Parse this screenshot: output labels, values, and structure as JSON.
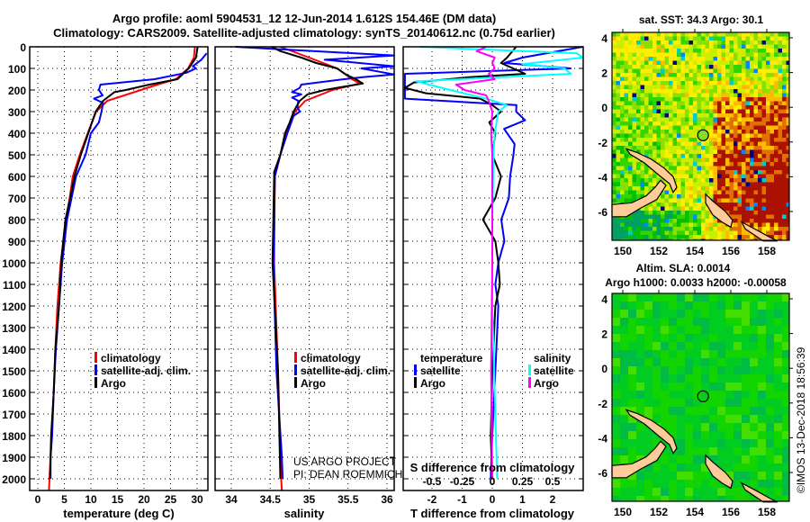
{
  "header": {
    "title_line1": "Argo profile: aoml 5904531_12 12-Jun-2014 1.612S 154.46E (DM data)",
    "title_line2": "Climatology: CARS2009. Satellite-adjusted climatology: synTS_20140612.nc (0.75d earlier)"
  },
  "colors": {
    "climatology": "#ff0000",
    "satellite": "#0000ff",
    "argo": "#000000",
    "sal_satellite": "#00ffff",
    "sal_argo": "#ff00ff",
    "land": "#ffcc99"
  },
  "depth_axis": {
    "ticks": [
      0,
      100,
      200,
      300,
      400,
      500,
      600,
      700,
      800,
      900,
      1000,
      1100,
      1200,
      1300,
      1400,
      1500,
      1600,
      1700,
      1800,
      1900,
      2000
    ],
    "range": [
      0,
      2055
    ]
  },
  "chart_data": [
    {
      "type": "line",
      "name": "temperature",
      "xlabel": "temperature (deg C)",
      "ylabel": "depth",
      "xlim": [
        -1.5,
        32.1
      ],
      "xticks": [
        0,
        5,
        10,
        15,
        20,
        25,
        30
      ],
      "grid": true,
      "legend_position": "middle-right",
      "legend": [
        "climatology",
        "satellite-adj. clim.",
        "Argo"
      ],
      "series": [
        {
          "name": "climatology",
          "color": "#ff0000",
          "depth": [
            0,
            50,
            100,
            150,
            175,
            200,
            250,
            300,
            400,
            500,
            600,
            700,
            800,
            900,
            1000,
            1100,
            1200,
            1400,
            1600,
            1800,
            2000,
            2055
          ],
          "values": [
            29.6,
            29.4,
            28.3,
            26,
            22.5,
            19.4,
            13.1,
            11,
            9.4,
            7.9,
            6.6,
            6.0,
            5.3,
            4.8,
            4.3,
            4.0,
            3.7,
            3.3,
            3.0,
            2.6,
            2.2,
            2.1
          ]
        },
        {
          "name": "satellite-adj. clim.",
          "color": "#0000ff",
          "depth": [
            30,
            60,
            90,
            100,
            120,
            150,
            175,
            200,
            225,
            240,
            260,
            300,
            350,
            400,
            500,
            600,
            800,
            1000,
            1200,
            1400,
            1600,
            1800,
            1900,
            2000
          ],
          "values": [
            31.8,
            30.8,
            29.2,
            29.8,
            28,
            22,
            11.8,
            11.5,
            12.2,
            10.6,
            12.3,
            12.0,
            11.5,
            10,
            9,
            7.2,
            5.5,
            4.6,
            4.0,
            3.4,
            3.0,
            2.7,
            2.4,
            2.4
          ]
        },
        {
          "name": "Argo",
          "color": "#000000",
          "depth": [
            0,
            50,
            100,
            150,
            175,
            200,
            210,
            250,
            300,
            400,
            500,
            600,
            700,
            800,
            900,
            1000,
            1100,
            1200,
            1400,
            1600,
            1800,
            2000
          ],
          "values": [
            30.1,
            29.8,
            28.4,
            26.3,
            21,
            16.6,
            14.4,
            12.3,
            10.9,
            9.5,
            8.1,
            6.9,
            6.1,
            5.2,
            4.8,
            4.4,
            4.2,
            4.0,
            3.3,
            3.0,
            2.5,
            2.3
          ]
        }
      ]
    },
    {
      "type": "line",
      "name": "salinity",
      "xlabel": "salinity",
      "ylabel": "depth",
      "xlim": [
        33.79,
        36.09
      ],
      "xticks": [
        34,
        34.5,
        35,
        35.5,
        36
      ],
      "xtick_labels": [
        "34",
        "34.5",
        "35",
        "35.5",
        "36"
      ],
      "grid": true,
      "legend_position": "middle-right",
      "legend": [
        "climatology",
        "satellite-adj. clim.",
        "Argo"
      ],
      "annotation": [
        "US ARGO PROJECT",
        "PI: DEAN ROEMMICH"
      ],
      "series": [
        {
          "name": "climatology",
          "color": "#ff0000",
          "depth": [
            0,
            50,
            100,
            150,
            170,
            200,
            250,
            300,
            400,
            500,
            600,
            1000,
            1500,
            2000,
            2055
          ],
          "values": [
            34.63,
            35.0,
            35.36,
            35.55,
            35.65,
            35.3,
            34.95,
            34.82,
            34.7,
            34.63,
            34.56,
            34.55,
            34.6,
            34.64,
            34.65
          ]
        },
        {
          "name": "satellite-adj. clim.",
          "color": "#0000ff",
          "depth": [
            0,
            40,
            60,
            90,
            100,
            128,
            140,
            150,
            175,
            190,
            210,
            220,
            235,
            250,
            280,
            300,
            320,
            400,
            500,
            600,
            1000,
            1500,
            1900,
            2000
          ],
          "values": [
            34.05,
            36.09,
            35.2,
            36.09,
            35.67,
            36.09,
            35.7,
            35.45,
            34.9,
            34.88,
            34.78,
            34.9,
            34.78,
            34.86,
            34.85,
            34.88,
            34.8,
            34.72,
            34.63,
            34.56,
            34.54,
            34.58,
            34.65,
            34.66
          ]
        },
        {
          "name": "Argo",
          "color": "#000000",
          "depth": [
            0,
            20,
            50,
            75,
            100,
            130,
            150,
            170,
            185,
            200,
            220,
            250,
            300,
            350,
            400,
            500,
            580,
            600,
            1000,
            1500,
            2000
          ],
          "values": [
            34.52,
            34.63,
            34.9,
            35.09,
            35.36,
            35.48,
            35.6,
            35.69,
            35.44,
            35.2,
            34.98,
            34.88,
            34.8,
            34.75,
            34.69,
            34.63,
            34.55,
            34.55,
            34.53,
            34.6,
            34.63
          ]
        }
      ]
    },
    {
      "type": "line",
      "name": "difference",
      "xlabel": "T difference from climatology",
      "x2label": "S difference from climatology",
      "xlim": [
        -2.96,
        3.0
      ],
      "xticks": [
        -2,
        -1,
        0,
        1,
        2
      ],
      "xtick_labels": [
        "-2",
        "-1",
        "0",
        "1",
        "2"
      ],
      "x2ticks": [
        -0.5,
        -0.25,
        0,
        0.25,
        0.5
      ],
      "x2tick_labels": [
        "-0.5",
        "-0.25",
        "0",
        "0.25",
        "0.5"
      ],
      "grid": true,
      "legend_left_title": "temperature",
      "legend_right_title": "salinity",
      "legend": [
        "satellite",
        "Argo",
        "satellite",
        "Argo"
      ],
      "series": [
        {
          "name": "T satellite",
          "color": "#0000ff",
          "axis": "T",
          "depth": [
            0,
            50,
            75,
            100,
            125,
            130,
            240,
            270,
            300,
            340,
            380,
            450,
            500,
            600,
            700,
            800,
            900,
            1000,
            1100,
            1200,
            1500,
            1800,
            2000
          ],
          "values": [
            3.0,
            1.0,
            0.4,
            2.6,
            -2.9,
            -2.9,
            -2.9,
            0.8,
            0.79,
            1.09,
            0.39,
            0.74,
            0.7,
            0.59,
            0.55,
            0.3,
            0.4,
            0.2,
            0.1,
            0.2,
            0.1,
            0.0,
            -0.05
          ]
        },
        {
          "name": "T Argo",
          "color": "#000000",
          "axis": "T",
          "depth": [
            0,
            50,
            75,
            100,
            125,
            140,
            165,
            190,
            215,
            240,
            270,
            300,
            350,
            400,
            500,
            600,
            700,
            800,
            900,
            1000,
            1100,
            1200,
            1500,
            1800,
            2000
          ],
          "values": [
            0.79,
            0.49,
            0.29,
            0.69,
            1.09,
            -0.71,
            -2.6,
            -2.9,
            -2.2,
            -0.4,
            0,
            0.29,
            -0.1,
            0.1,
            0,
            0.29,
            0.1,
            -0.31,
            0.1,
            0.2,
            0.25,
            0.1,
            0,
            -0.05,
            0
          ]
        },
        {
          "name": "S satellite",
          "color": "#00ffff",
          "axis": "S",
          "depth": [
            0,
            30,
            50,
            80,
            100,
            125,
            160,
            200,
            240,
            270,
            300,
            400,
            500,
            800,
            1200,
            1600,
            2000
          ],
          "values": [
            -0.6,
            0.7,
            0.75,
            0.25,
            0.6,
            0.65,
            -0.63,
            -0.35,
            -0.05,
            0.12,
            0.05,
            0.02,
            0.01,
            0,
            0,
            0.02,
            0.04
          ]
        },
        {
          "name": "S Argo",
          "color": "#ff00ff",
          "axis": "S",
          "depth": [
            0,
            20,
            50,
            75,
            100,
            125,
            150,
            175,
            200,
            225,
            250,
            300,
            400,
            500,
            1000,
            1500,
            2000
          ],
          "values": [
            -0.05,
            -0.13,
            0.02,
            0,
            0.02,
            -0.03,
            0.02,
            -0.3,
            -0.23,
            -0.05,
            -0.03,
            0,
            -0.01,
            0,
            0,
            -0.01,
            0
          ]
        }
      ]
    }
  ],
  "maps": {
    "sst": {
      "title": "sat. SST: 34.3 Argo: 30.1"
    },
    "sla": {
      "title_line1": "Altim. SLA: 0.0014",
      "title_line2": "Argo h1000: 0.0033 h2000: -0.00058"
    },
    "lon_ticks": [
      150,
      152,
      154,
      156,
      158
    ],
    "lat_ticks": [
      4,
      2,
      0,
      -2,
      -4,
      -6
    ],
    "argo_position": {
      "lon": 154.46,
      "lat": -1.612
    }
  },
  "footer": {
    "stamp": "©IMOS 13-Dec-2018 18:56:39"
  }
}
